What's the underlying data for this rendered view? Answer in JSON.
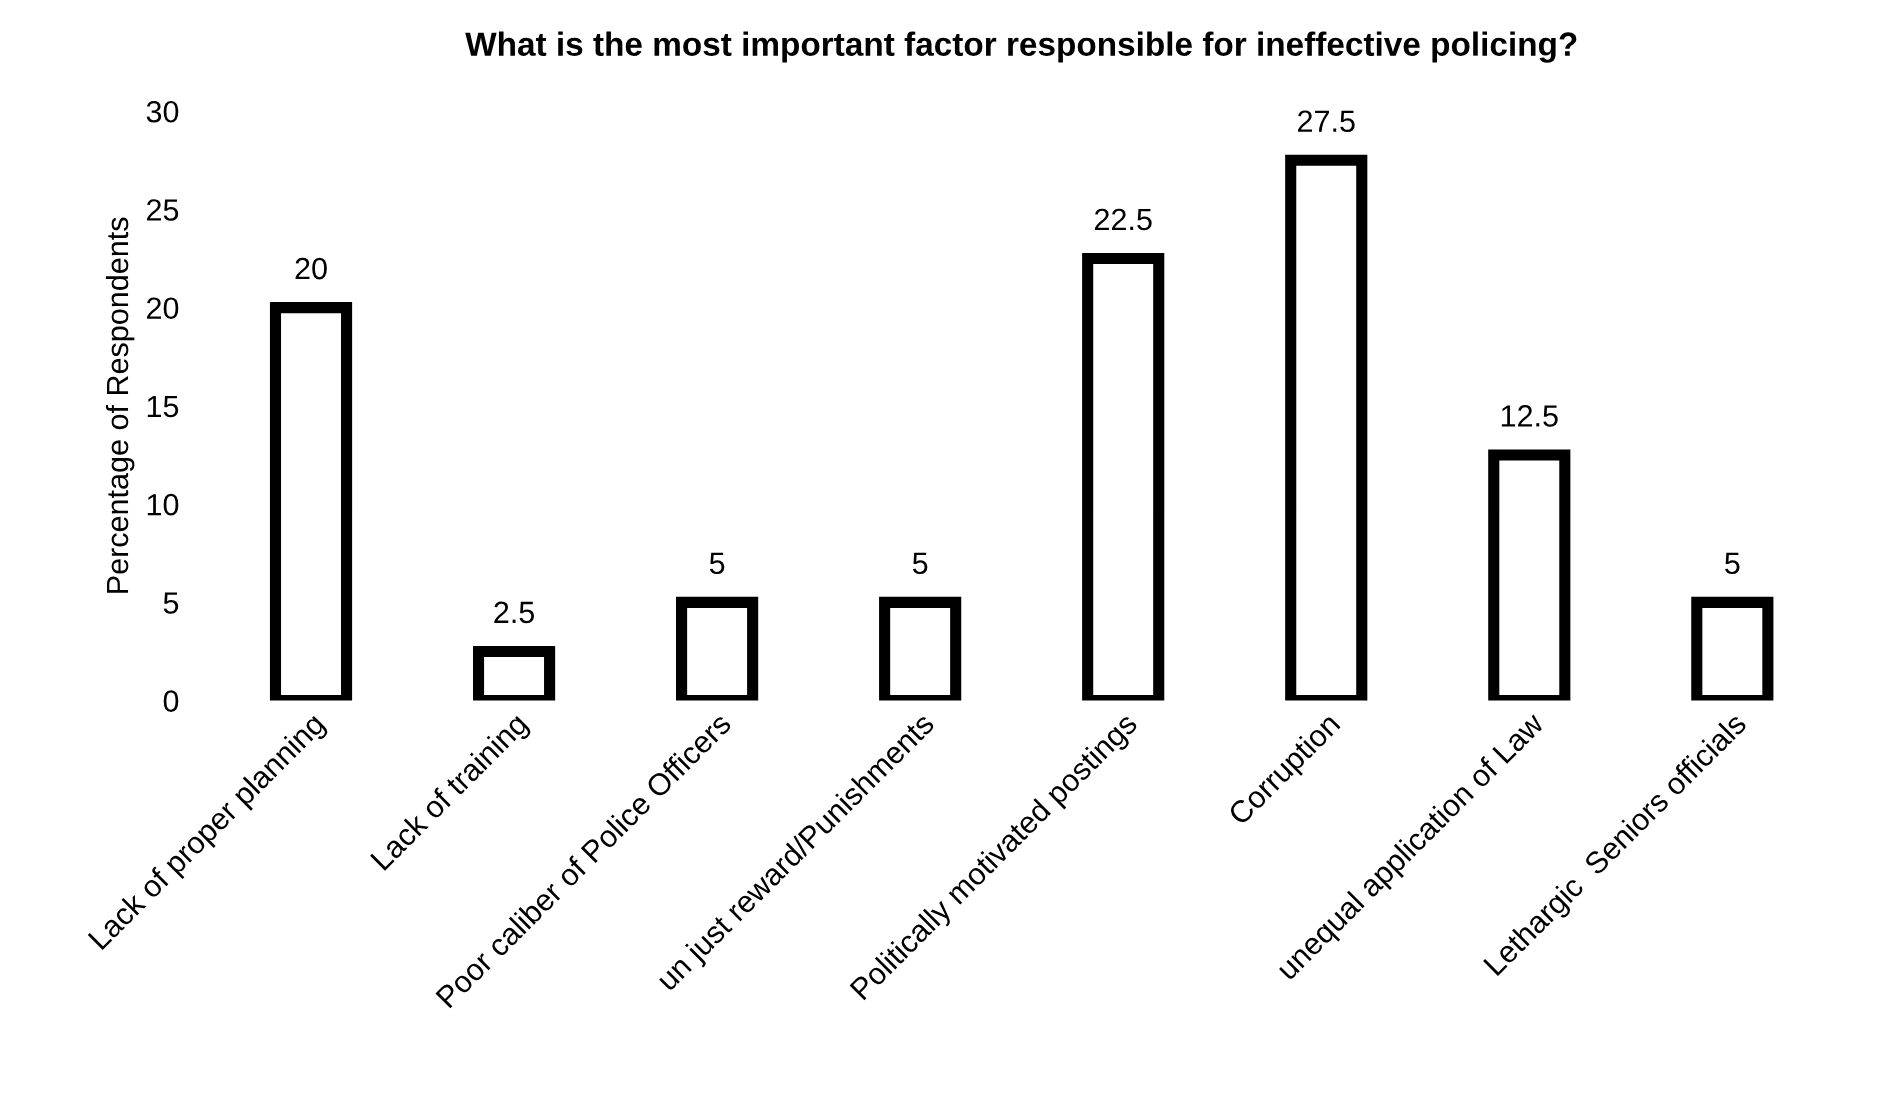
{
  "chart_data": {
    "type": "bar",
    "title": "What is the most important factor responsible for ineffective policing?",
    "ylabel": "Percentage of Respondents",
    "categories": [
      "Lack of proper planning",
      "Lack of training",
      "Poor caliber of Police Officers",
      "un just reward/Punishments",
      "Politically motivated postings",
      "Corruption",
      "unequal application of Law",
      "Lethargic  Seniors officials"
    ],
    "values": [
      20,
      2.5,
      5,
      5,
      22.5,
      27.5,
      12.5,
      5
    ],
    "color": "#000000",
    "ylim": [
      0,
      30
    ],
    "yticks": [
      0,
      5,
      10,
      15,
      20,
      25,
      30
    ],
    "grid": false,
    "data_labels": true
  }
}
